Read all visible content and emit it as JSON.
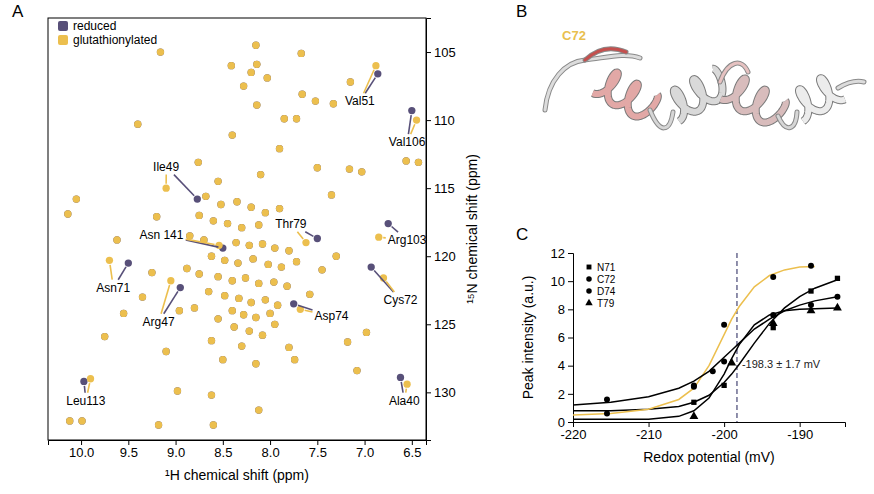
{
  "chart_data": [
    {
      "type": "scatter",
      "panel_label": "A",
      "x_label": "¹H chemical shift (ppm)",
      "y_label": "¹⁵N chemical shift (ppm)",
      "xlim": [
        10.35,
        6.35
      ],
      "ylim": [
        102.5,
        133.5
      ],
      "xticks": [
        {
          "value": 10,
          "label": "10.0"
        },
        9.5,
        {
          "value": 9,
          "label": "9.0"
        },
        8.5,
        {
          "value": 8,
          "label": "8.0"
        },
        7.5,
        {
          "value": 7,
          "label": "7.0"
        },
        6.5
      ],
      "yticks": [
        105,
        110,
        115,
        120,
        125,
        130
      ],
      "legend": "top-left",
      "marker": "circle",
      "series": [
        {
          "name": "reduced",
          "color": "#585079",
          "x": [
            6.86,
            8.77,
            6.5,
            7.5,
            8.5,
            6.75,
            9.5,
            6.93,
            8.95,
            7.75,
            9.97,
            6.62,
            9.16,
            8.15,
            7.67,
            8.14,
            8.41,
            8.2,
            8.03,
            8.28,
            7.66,
            7.15,
            7.52,
            8.14,
            7.85,
            7.72,
            7.33,
            6.56,
            6.43,
            8.4,
            8.76,
            7.16,
            7.03,
            10.14,
            9.2,
            9.62,
            8.68,
            8.52,
            8.35,
            8.2,
            8.05,
            7.9,
            8.75,
            8.6,
            8.45,
            8.3,
            8.12,
            8.85,
            8.7,
            8.36,
            8.22,
            8.08,
            7.95,
            7.8,
            8.62,
            8.48,
            8.34,
            8.18,
            8.02,
            7.88,
            7.72,
            8.88,
            8.75,
            8.55,
            8.4,
            8.26,
            8.12,
            7.96,
            7.82,
            8.65,
            8.48,
            8.33,
            8.2,
            8.05,
            7.92,
            8.4,
            8.28,
            8.15,
            8.0,
            8.55,
            8.38,
            8.22,
            8.08,
            8.62,
            8.3,
            7.95,
            8.8,
            8.96,
            9.35,
            9.25,
            9.55,
            9.75,
            9.1,
            8.5,
            8.15,
            7.8,
            7.58,
            7.45,
            7.3,
            7.18,
            6.98,
            7.08,
            8.98,
            8.62,
            7.74,
            7.35,
            7.5,
            8.1,
            8.55,
            9.4,
            7.9,
            10.05,
            10.12,
            9.99,
            9.18,
            8.6,
            8.12
          ],
          "values": [
            106.6,
            115.8,
            109.3,
            118.7,
            119.4,
            117.6,
            120.5,
            120.8,
            122.3,
            123.5,
            129.2,
            128.9,
            105.0,
            104.5,
            105.1,
            105.9,
            106.0,
            106.5,
            106.9,
            107.5,
            108.1,
            107.2,
            108.6,
            108.9,
            109.9,
            109.9,
            108.8,
            113.0,
            113.1,
            111.1,
            113.1,
            113.6,
            113.8,
            116.9,
            117.1,
            118.8,
            115.6,
            116.2,
            116.0,
            116.4,
            116.8,
            116.5,
            117.0,
            117.4,
            117.6,
            117.9,
            117.7,
            118.5,
            118.8,
            119.0,
            119.2,
            119.1,
            119.4,
            119.6,
            120.0,
            120.3,
            120.5,
            120.2,
            120.6,
            120.8,
            120.4,
            120.9,
            121.3,
            121.5,
            121.8,
            121.6,
            122.0,
            121.9,
            122.2,
            122.6,
            122.9,
            123.1,
            123.4,
            123.2,
            123.6,
            124.0,
            124.3,
            124.5,
            124.2,
            124.6,
            125.2,
            125.5,
            125.8,
            126.2,
            126.6,
            125.0,
            123.8,
            124.0,
            123.0,
            121.2,
            124.2,
            125.9,
            127.0,
            127.6,
            127.9,
            126.7,
            122.8,
            121.0,
            120.0,
            126.3,
            125.6,
            128.4,
            129.9,
            130.2,
            127.6,
            115.5,
            113.5,
            114.0,
            114.5,
            110.3,
            112.1,
            115.8,
            132.1,
            132.1,
            132.4,
            132.4,
            131.3
          ]
        },
        {
          "name": "glutathionylated",
          "color": "#ecbf4e",
          "x": [
            6.88,
            9.1,
            6.45,
            7.62,
            8.54,
            6.85,
            9.7,
            6.8,
            9.05,
            7.68,
            9.9,
            6.55,
            9.16,
            8.15,
            7.67,
            8.14,
            8.41,
            8.2,
            8.03,
            8.28,
            7.66,
            7.15,
            7.52,
            8.14,
            7.85,
            7.72,
            7.33,
            6.56,
            6.43,
            8.4,
            8.76,
            7.16,
            7.03,
            10.14,
            9.2,
            9.62,
            8.68,
            8.52,
            8.35,
            8.2,
            8.05,
            7.9,
            8.75,
            8.6,
            8.45,
            8.3,
            8.12,
            8.85,
            8.7,
            8.36,
            8.22,
            8.08,
            7.95,
            7.8,
            8.62,
            8.48,
            8.34,
            8.18,
            8.02,
            7.88,
            7.72,
            8.88,
            8.75,
            8.55,
            8.4,
            8.26,
            8.12,
            7.96,
            7.82,
            8.65,
            8.48,
            8.33,
            8.2,
            8.05,
            7.92,
            8.4,
            8.28,
            8.15,
            8.0,
            8.55,
            8.38,
            8.22,
            8.08,
            8.62,
            8.3,
            7.95,
            8.8,
            8.96,
            9.35,
            9.25,
            9.55,
            9.75,
            9.1,
            8.5,
            8.15,
            7.8,
            7.58,
            7.45,
            7.3,
            7.18,
            6.98,
            7.08,
            8.98,
            8.62,
            7.74,
            7.35,
            7.5,
            8.1,
            8.55,
            9.4,
            7.9,
            10.05,
            10.12,
            9.99,
            9.18,
            8.6,
            8.12
          ],
          "values": [
            106.0,
            115.0,
            110.0,
            119.0,
            119.2,
            118.6,
            120.3,
            121.6,
            121.8,
            123.9,
            129.0,
            129.4,
            105.0,
            104.5,
            105.1,
            105.9,
            106.0,
            106.5,
            106.9,
            107.5,
            108.1,
            107.2,
            108.6,
            108.9,
            109.9,
            109.9,
            108.8,
            113.0,
            113.1,
            111.1,
            113.1,
            113.6,
            113.8,
            116.9,
            117.1,
            118.8,
            115.6,
            116.2,
            116.0,
            116.4,
            116.8,
            116.5,
            117.0,
            117.4,
            117.6,
            117.9,
            117.7,
            118.5,
            118.8,
            119.0,
            119.2,
            119.1,
            119.4,
            119.6,
            120.0,
            120.3,
            120.5,
            120.2,
            120.6,
            120.8,
            120.4,
            120.9,
            121.3,
            121.5,
            121.8,
            121.6,
            122.0,
            121.9,
            122.2,
            122.6,
            122.9,
            123.1,
            123.4,
            123.2,
            123.6,
            124.0,
            124.3,
            124.5,
            124.2,
            124.6,
            125.2,
            125.5,
            125.8,
            126.2,
            126.6,
            125.0,
            123.8,
            124.0,
            123.0,
            121.2,
            124.2,
            125.9,
            127.0,
            127.6,
            127.9,
            126.7,
            122.8,
            121.0,
            120.0,
            126.3,
            125.6,
            128.4,
            129.9,
            130.2,
            127.6,
            115.5,
            113.5,
            114.0,
            114.5,
            110.3,
            112.1,
            115.8,
            132.1,
            132.1,
            132.4,
            132.4,
            131.3
          ]
        }
      ],
      "annotations": [
        {
          "text": "Val51",
          "x": 7.05,
          "y": 108.6
        },
        {
          "text": "Ile49",
          "x": 9.1,
          "y": 113.4
        },
        {
          "text": "Val106",
          "x": 6.55,
          "y": 111.6
        },
        {
          "text": "Thr79",
          "x": 7.78,
          "y": 117.6
        },
        {
          "text": "Asn 141",
          "x": 9.15,
          "y": 118.4
        },
        {
          "text": "Arg103",
          "x": 6.55,
          "y": 118.8
        },
        {
          "text": "Asn71",
          "x": 9.66,
          "y": 122.3
        },
        {
          "text": "Cys72",
          "x": 6.62,
          "y": 123.2
        },
        {
          "text": "Arg47",
          "x": 9.18,
          "y": 124.8
        },
        {
          "text": "Asp74",
          "x": 7.35,
          "y": 124.4
        },
        {
          "text": "Leu113",
          "x": 9.95,
          "y": 130.6
        },
        {
          "text": "Ala40",
          "x": 6.58,
          "y": 130.6
        }
      ]
    },
    {
      "type": "structure",
      "panel_label": "B",
      "annotations": [
        {
          "text": "C72",
          "color": "#e9bf4f"
        }
      ]
    },
    {
      "type": "line",
      "panel_label": "C",
      "x_label": "Redox potential (mV)",
      "y_label": "Peak intensity (a.u.)",
      "xlim": [
        -220,
        -184
      ],
      "ylim": [
        0,
        12
      ],
      "xticks": [
        -220,
        -210,
        -200,
        -190
      ],
      "yticks": [
        0,
        2,
        4,
        6,
        8,
        10,
        12
      ],
      "legend": "top-left",
      "x": [
        -215.5,
        -204,
        -201.5,
        -200,
        -199,
        -193.5,
        -188.5,
        -185
      ],
      "fit_x": [
        -220,
        -215,
        -210,
        -206,
        -204,
        -202,
        -200,
        -199,
        -198,
        -196,
        -194,
        -192,
        -190,
        -188,
        -185
      ],
      "series": [
        {
          "name": "N71",
          "color": "#000000",
          "marker": "square",
          "values": [
            null,
            1.4,
            null,
            2.6,
            null,
            6.7,
            9.3,
            10.2
          ],
          "fit": [
            0.8,
            0.8,
            0.9,
            1.1,
            1.4,
            1.9,
            2.8,
            3.4,
            4.1,
            5.6,
            7.0,
            8.1,
            8.9,
            9.5,
            10.1
          ]
        },
        {
          "name": "C72",
          "color": "#ecbf4e",
          "marker": "circle",
          "values": [
            0.6,
            2.5,
            3.6,
            6.9,
            null,
            10.3,
            11.1,
            null
          ],
          "fit": [
            0.5,
            0.6,
            0.9,
            1.6,
            2.4,
            4.0,
            6.2,
            7.3,
            8.2,
            9.6,
            10.4,
            10.8,
            11.0,
            11.05,
            null
          ]
        },
        {
          "name": "D74",
          "color": "#000000",
          "marker": "circle",
          "values": [
            1.6,
            2.6,
            null,
            4.3,
            null,
            7.6,
            8.3,
            8.9
          ],
          "fit": [
            1.2,
            1.4,
            1.8,
            2.4,
            2.9,
            3.6,
            4.6,
            5.1,
            5.6,
            6.6,
            7.3,
            7.9,
            8.3,
            8.6,
            8.9
          ]
        },
        {
          "name": "T79",
          "color": "#000000",
          "marker": "triangle",
          "values": [
            null,
            0.4,
            null,
            null,
            4.2,
            7.0,
            7.9,
            8.1
          ],
          "fit": [
            0.2,
            0.2,
            0.2,
            0.4,
            0.8,
            1.7,
            3.4,
            4.5,
            5.5,
            6.9,
            7.6,
            7.9,
            8.0,
            8.05,
            8.1
          ]
        }
      ],
      "annotations": [
        {
          "type": "vline",
          "x": -198.3,
          "text": "-198.3 ± 1.7 mV",
          "color": "#6b6b90",
          "line_style": "dashed"
        }
      ]
    }
  ]
}
